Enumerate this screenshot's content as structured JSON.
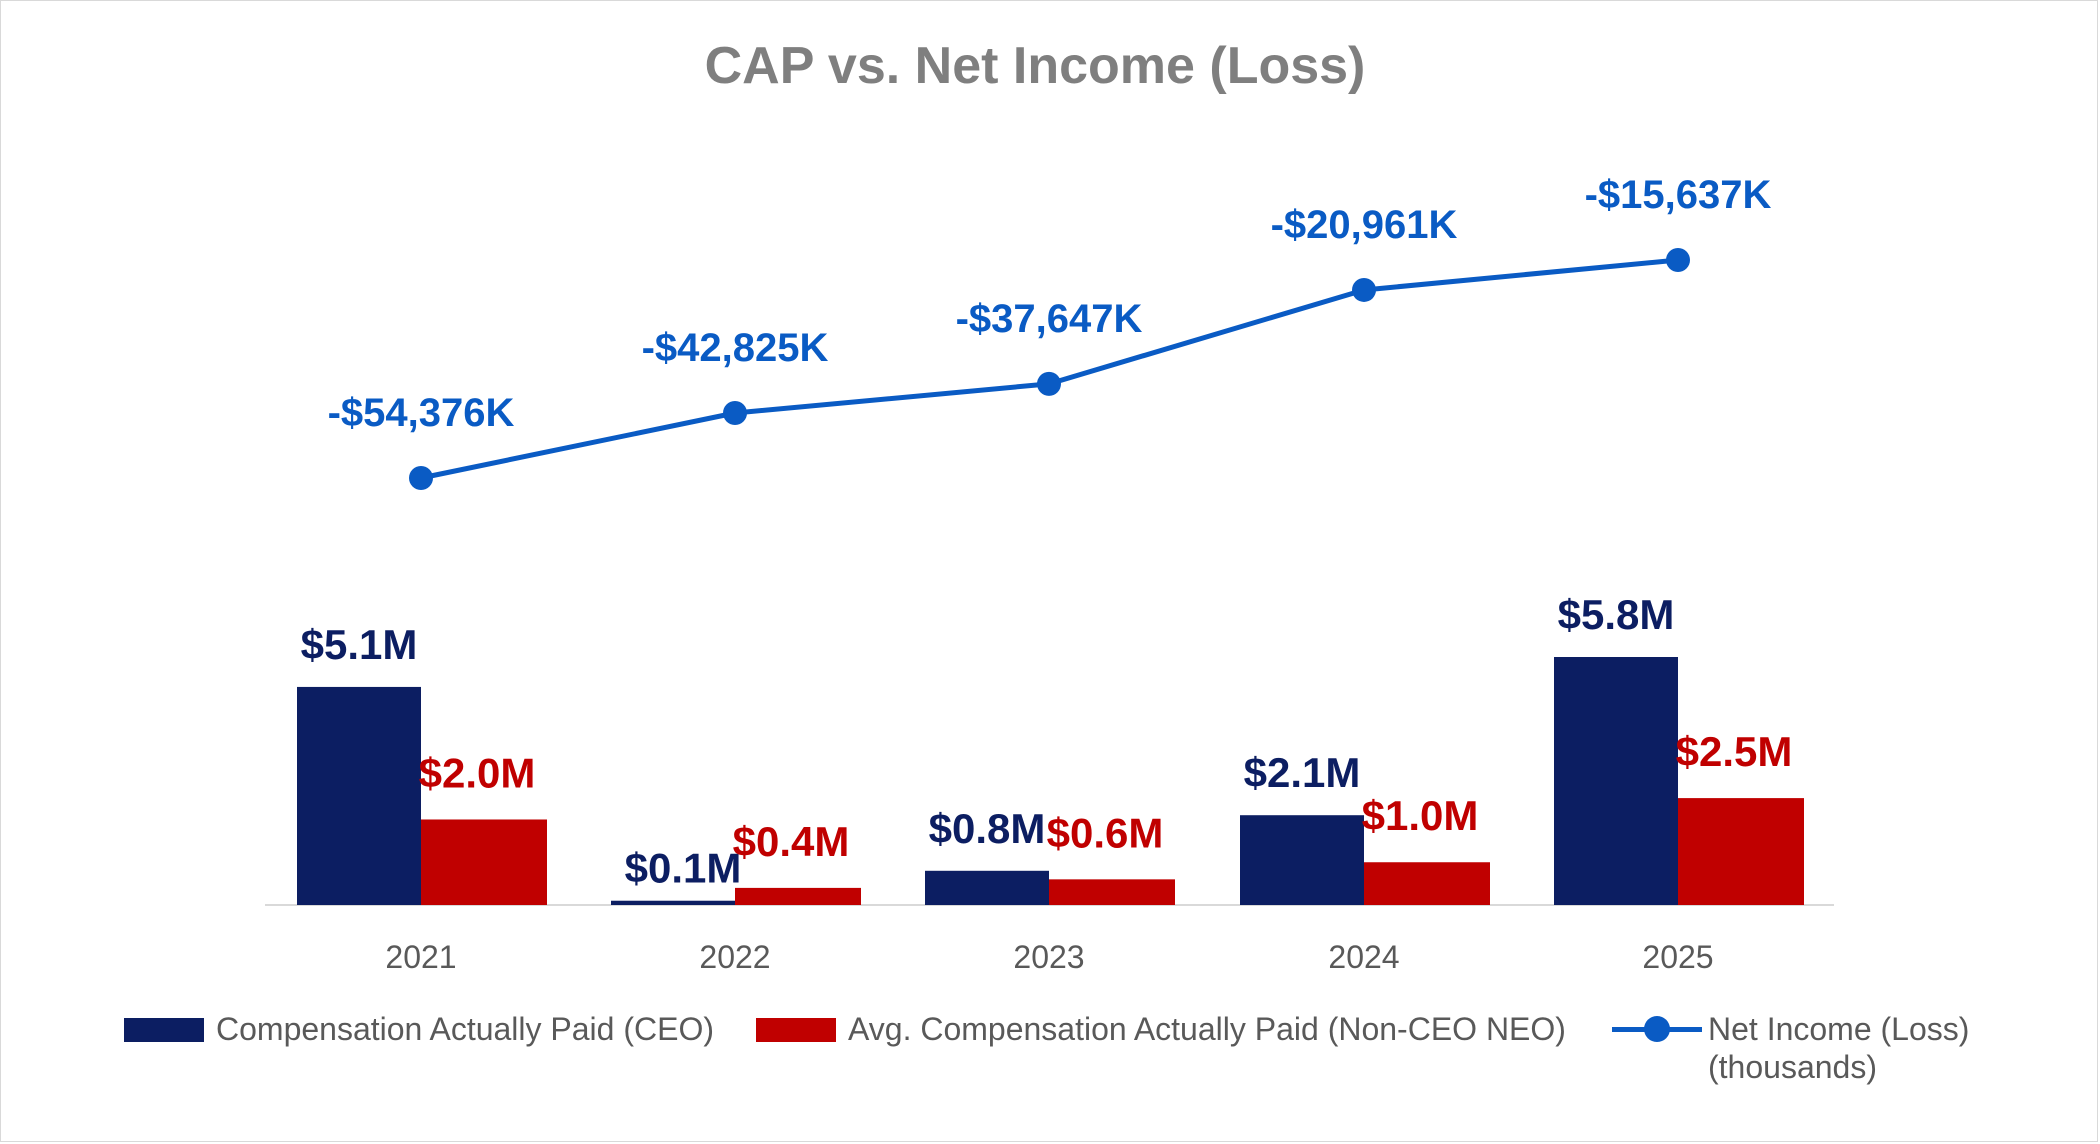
{
  "chart_data": {
    "type": "bar",
    "title": "CAP vs. Net Income (Loss)",
    "categories": [
      "2021",
      "2022",
      "2023",
      "2024",
      "2025"
    ],
    "bar_max": 5.8,
    "series": [
      {
        "name": "Compensation Actually Paid (CEO)",
        "kind": "bar",
        "color": "#0c1e62",
        "label_color": "#0c1e62",
        "values": [
          5.1,
          0.1,
          0.8,
          2.1,
          5.8
        ],
        "labels": [
          "$5.1M",
          "$0.1M",
          "$0.8M",
          "$2.1M",
          "$5.8M"
        ]
      },
      {
        "name": "Avg. Compensation Actually Paid (Non-CEO NEO)",
        "kind": "bar",
        "color": "#c00000",
        "label_color": "#c00000",
        "values": [
          2.0,
          0.4,
          0.6,
          1.0,
          2.5
        ],
        "labels": [
          "$2.0M",
          "$0.4M",
          "$0.6M",
          "$1.0M",
          "$2.5M"
        ]
      },
      {
        "name": "Net Income (Loss)",
        "name_line2": "(thousands)",
        "kind": "line",
        "color": "#0a5bc4",
        "label_color": "#0a5bc4",
        "values": [
          -54376,
          -42825,
          -37647,
          -20961,
          -15637
        ],
        "labels": [
          "-$54,376K",
          "-$42,825K",
          "-$37,647K",
          "-$20,961K",
          "-$15,637K"
        ]
      }
    ],
    "legend_position": "bottom"
  }
}
